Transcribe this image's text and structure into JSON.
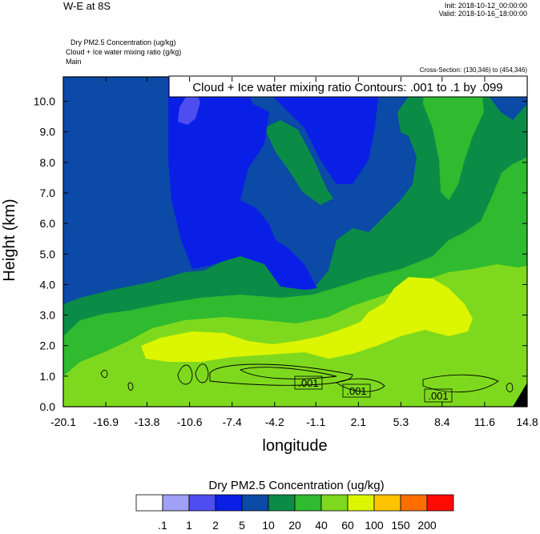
{
  "header": {
    "title": "W-E at 8S",
    "init": "Init: 2018-10-12_00:00:00",
    "valid": "Valid: 2018-10-16_18:00:00",
    "desc_lines": [
      "Dry PM2.5 Concentration   (ug/kg)",
      "Cloud + Ice water mixing ratio   (g/kg)",
      "Main"
    ],
    "cross_section": "Cross-Section: (130,346) to (454,346)"
  },
  "chart_data": {
    "type": "heatmap",
    "contour_banner": "Cloud + Ice water mixing ratio Contours: .001 to .1 by .099",
    "xlabel": "longitude",
    "ylabel": "Height (km)",
    "xlim": [
      -20.1,
      14.8
    ],
    "ylim": [
      0.0,
      10.8
    ],
    "xticks": [
      "-20.1",
      "-16.9",
      "-13.8",
      "-10.6",
      "-7.4",
      "-4.2",
      "-1.1",
      "2.1",
      "5.3",
      "8.4",
      "11.6",
      "14.8"
    ],
    "yticks": [
      "0.0",
      "1.0",
      "2.0",
      "3.0",
      "4.0",
      "5.0",
      "6.0",
      "7.0",
      "8.0",
      "9.0",
      "10.0"
    ],
    "colorbar": {
      "title": "Dry PM2.5 Concentration  (ug/kg)",
      "labels": [
        ".1",
        "1",
        "2",
        "5",
        "10",
        "20",
        "40",
        "60",
        "100",
        "150",
        "200"
      ],
      "colors": [
        "#ffffff",
        "#a0a0f6",
        "#4d4df0",
        "#0a1fe6",
        "#0b4aa6",
        "#0b8c46",
        "#2fba2f",
        "#7ed91e",
        "#dcf500",
        "#ffc400",
        "#ff6e00",
        "#ff0a00"
      ]
    },
    "contour_labels": [
      ".001",
      ".001",
      ".001"
    ]
  }
}
